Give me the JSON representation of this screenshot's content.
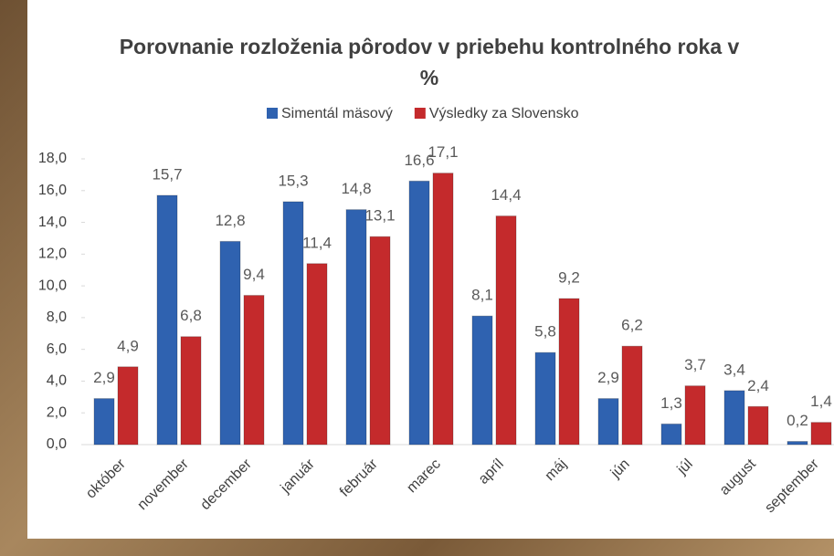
{
  "chart_data": {
    "type": "bar",
    "title": "Porovnanie rozloženia pôrodov v priebehu kontrolného roka v %",
    "categories": [
      "október",
      "november",
      "december",
      "január",
      "február",
      "marec",
      "apríl",
      "máj",
      "jún",
      "júl",
      "august",
      "september"
    ],
    "series": [
      {
        "name": "Simentál mäsový",
        "color": "#2f62b0",
        "values": [
          2.9,
          15.7,
          12.8,
          15.3,
          14.8,
          16.6,
          8.1,
          5.8,
          2.9,
          1.3,
          3.4,
          0.2
        ],
        "value_labels": [
          "2,9",
          "15,7",
          "12,8",
          "15,3",
          "14,8",
          "16,6",
          "8,1",
          "5,8",
          "2,9",
          "1,3",
          "3,4",
          "0,2"
        ]
      },
      {
        "name": "Výsledky za Slovensko",
        "color": "#c42a2c",
        "values": [
          4.9,
          6.8,
          9.4,
          11.4,
          13.1,
          17.1,
          14.4,
          9.2,
          6.2,
          3.7,
          2.4,
          1.4
        ],
        "value_labels": [
          "4,9",
          "6,8",
          "9,4",
          "11,4",
          "13,1",
          "17,1",
          "14,4",
          "9,2",
          "6,2",
          "3,7",
          "2,4",
          "1,4"
        ]
      }
    ],
    "ylim": [
      0,
      18
    ],
    "yticks": [
      {
        "value": 0,
        "label": "0,0"
      },
      {
        "value": 2,
        "label": "2,0"
      },
      {
        "value": 4,
        "label": "4,0"
      },
      {
        "value": 6,
        "label": "6,0"
      },
      {
        "value": 8,
        "label": "8,0"
      },
      {
        "value": 10,
        "label": "10,0"
      },
      {
        "value": 12,
        "label": "12,0"
      },
      {
        "value": 14,
        "label": "14,0"
      },
      {
        "value": 16,
        "label": "16,0"
      },
      {
        "value": 18,
        "label": "18,0"
      }
    ],
    "grid": false
  }
}
